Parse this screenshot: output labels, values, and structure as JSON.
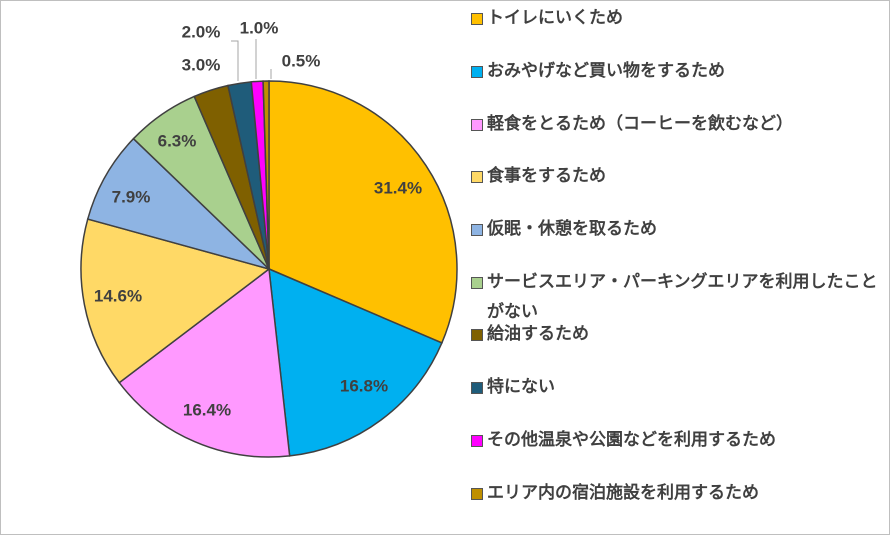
{
  "chart_data": {
    "type": "pie",
    "slices": [
      {
        "label": "トイレにいくため",
        "value": 31.4,
        "value_label": "31.4%",
        "color": "#FFC000"
      },
      {
        "label": "おみやげなど買い物をするため",
        "value": 16.8,
        "value_label": "16.8%",
        "color": "#00B0F0"
      },
      {
        "label": "軽食をとるため（コーヒーを飲むなど）",
        "value": 16.4,
        "value_label": "16.4%",
        "color": "#FF99FF"
      },
      {
        "label": "食事をするため",
        "value": 14.6,
        "value_label": "14.6%",
        "color": "#FFD966"
      },
      {
        "label": "仮眠・休憩を取るため",
        "value": 7.9,
        "value_label": "7.9%",
        "color": "#8EB4E3"
      },
      {
        "label": "サービスエリア・パーキングエリアを利用したことがない",
        "value": 6.3,
        "value_label": "6.3%",
        "color": "#A9D08E"
      },
      {
        "label": "給油するため",
        "value": 3.0,
        "value_label": "3.0%",
        "color": "#7F6000"
      },
      {
        "label": "特にない",
        "value": 2.0,
        "value_label": "2.0%",
        "color": "#1F5C7A"
      },
      {
        "label": "その他温泉や公園などを利用するため",
        "value": 1.0,
        "value_label": "1.0%",
        "color": "#FF00FF"
      },
      {
        "label": "エリア内の宿泊施設を利用するため",
        "value": 0.5,
        "value_label": "0.5%",
        "color": "#BF8F00"
      }
    ],
    "legend_position": "right"
  }
}
